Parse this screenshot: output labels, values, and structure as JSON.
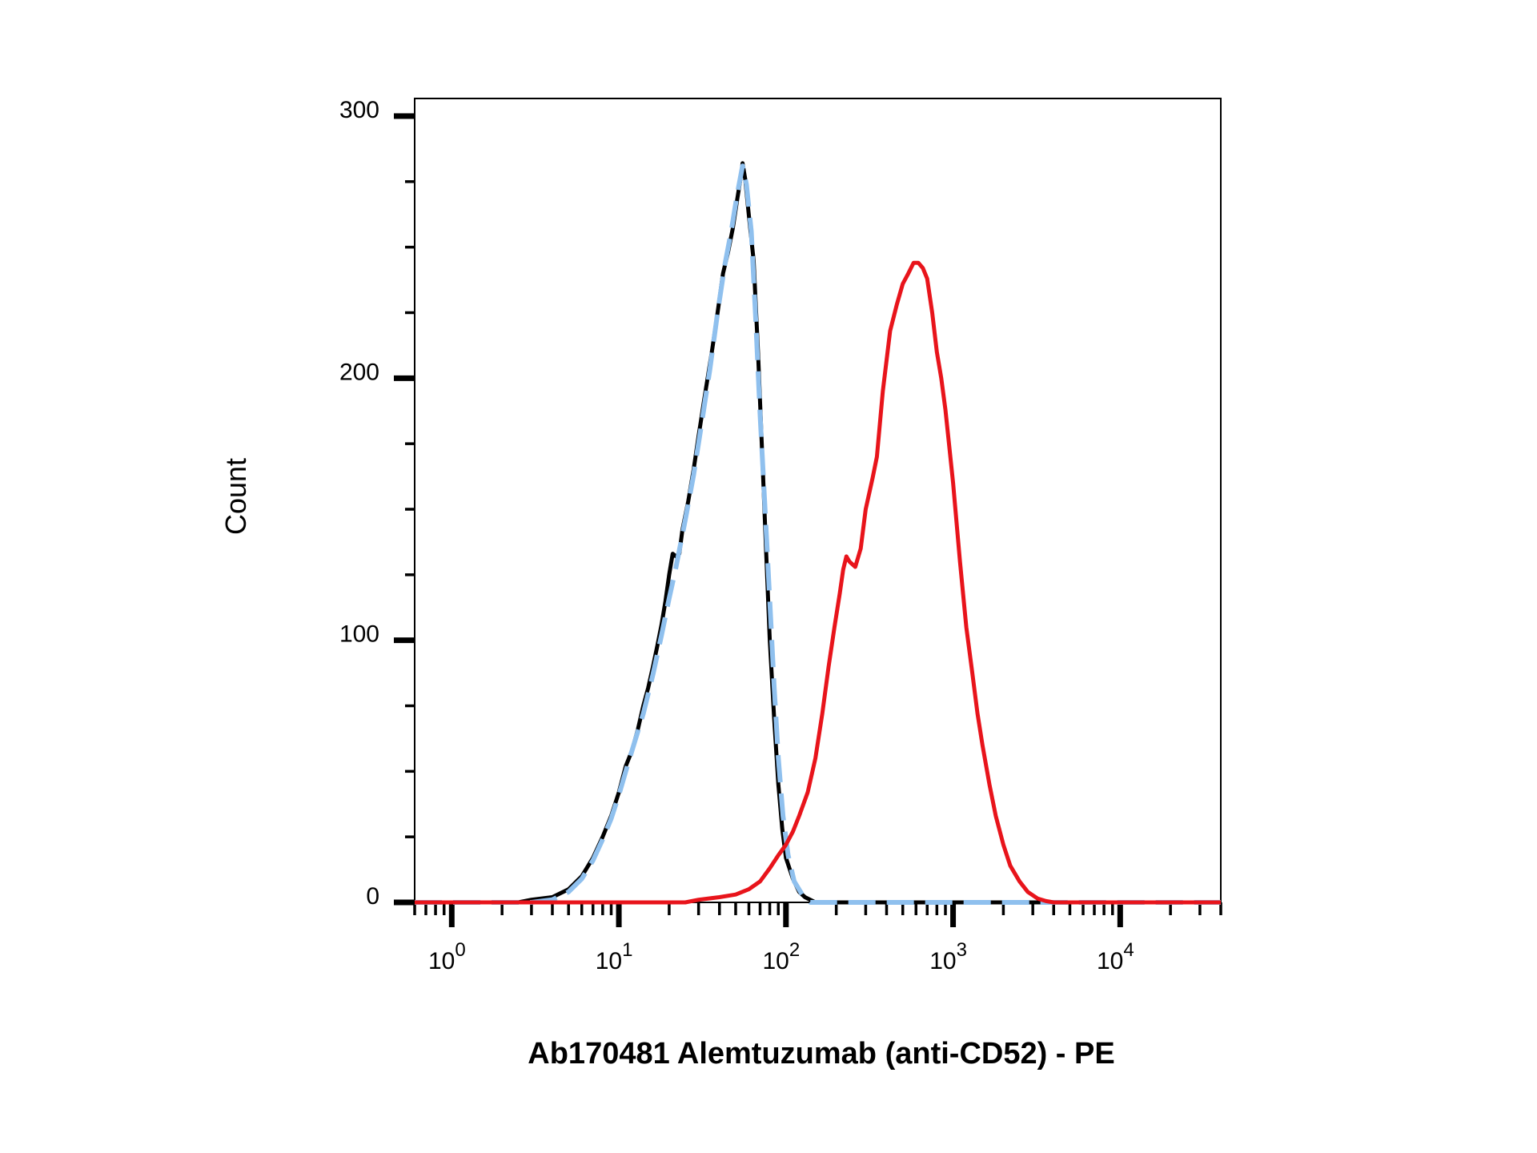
{
  "chart_data": {
    "type": "line",
    "title": "",
    "xlabel": "Ab170481 Alemtuzumab (anti-CD52) - PE",
    "ylabel": "Count",
    "x_scale": "log",
    "xlim": [
      0.6,
      40000
    ],
    "ylim": [
      0,
      305
    ],
    "x_ticks": [
      {
        "value": 1,
        "base": "10",
        "exp": "0"
      },
      {
        "value": 10,
        "base": "10",
        "exp": "1"
      },
      {
        "value": 100,
        "base": "10",
        "exp": "2"
      },
      {
        "value": 1000,
        "base": "10",
        "exp": "3"
      },
      {
        "value": 10000,
        "base": "10",
        "exp": "4"
      }
    ],
    "y_ticks": [
      {
        "value": 0,
        "label": "0"
      },
      {
        "value": 100,
        "label": "100"
      },
      {
        "value": 200,
        "label": "200"
      },
      {
        "value": 300,
        "label": "300"
      }
    ],
    "grid": false,
    "legend": false,
    "series": [
      {
        "color": "#000000",
        "style": "solid",
        "points": [
          [
            0.6,
            0
          ],
          [
            2.5,
            0
          ],
          [
            3,
            1
          ],
          [
            4,
            2
          ],
          [
            5,
            5
          ],
          [
            6,
            10
          ],
          [
            7,
            17
          ],
          [
            8,
            25
          ],
          [
            9,
            33
          ],
          [
            10,
            42
          ],
          [
            11,
            52
          ],
          [
            12,
            58
          ],
          [
            13,
            66
          ],
          [
            14,
            75
          ],
          [
            15,
            82
          ],
          [
            16,
            90
          ],
          [
            17,
            98
          ],
          [
            18,
            106
          ],
          [
            19,
            115
          ],
          [
            20,
            125
          ],
          [
            21,
            133
          ],
          [
            22,
            132
          ],
          [
            23,
            133
          ],
          [
            24,
            142
          ],
          [
            26,
            153
          ],
          [
            28,
            165
          ],
          [
            30,
            178
          ],
          [
            33,
            195
          ],
          [
            36,
            210
          ],
          [
            39,
            225
          ],
          [
            42,
            240
          ],
          [
            45,
            248
          ],
          [
            48,
            257
          ],
          [
            51,
            268
          ],
          [
            54,
            278
          ],
          [
            55,
            282
          ],
          [
            57,
            276
          ],
          [
            60,
            262
          ],
          [
            64,
            245
          ],
          [
            68,
            210
          ],
          [
            72,
            172
          ],
          [
            76,
            135
          ],
          [
            80,
            100
          ],
          [
            85,
            70
          ],
          [
            90,
            45
          ],
          [
            95,
            28
          ],
          [
            100,
            17
          ],
          [
            110,
            9
          ],
          [
            120,
            4
          ],
          [
            130,
            2
          ],
          [
            150,
            0
          ],
          [
            40000,
            0
          ]
        ]
      },
      {
        "color": "#8fc0ee",
        "style": "dashed",
        "points": [
          [
            0.6,
            0
          ],
          [
            3,
            0
          ],
          [
            4,
            1
          ],
          [
            5,
            4
          ],
          [
            6,
            9
          ],
          [
            7,
            16
          ],
          [
            8,
            24
          ],
          [
            9,
            32
          ],
          [
            10,
            41
          ],
          [
            11,
            50
          ],
          [
            12,
            58
          ],
          [
            14,
            72
          ],
          [
            16,
            87
          ],
          [
            18,
            102
          ],
          [
            20,
            116
          ],
          [
            22,
            128
          ],
          [
            25,
            146
          ],
          [
            28,
            163
          ],
          [
            31,
            181
          ],
          [
            35,
            203
          ],
          [
            39,
            225
          ],
          [
            43,
            243
          ],
          [
            47,
            256
          ],
          [
            51,
            270
          ],
          [
            55,
            281
          ],
          [
            58,
            274
          ],
          [
            62,
            256
          ],
          [
            66,
            222
          ],
          [
            70,
            186
          ],
          [
            75,
            150
          ],
          [
            80,
            115
          ],
          [
            85,
            82
          ],
          [
            90,
            55
          ],
          [
            96,
            33
          ],
          [
            103,
            18
          ],
          [
            112,
            8
          ],
          [
            125,
            3
          ],
          [
            140,
            0
          ],
          [
            40000,
            0
          ]
        ]
      },
      {
        "color": "#e8141b",
        "style": "solid",
        "points": [
          [
            0.6,
            0
          ],
          [
            25,
            0
          ],
          [
            30,
            1
          ],
          [
            40,
            2
          ],
          [
            50,
            3
          ],
          [
            60,
            5
          ],
          [
            70,
            8
          ],
          [
            80,
            13
          ],
          [
            90,
            18
          ],
          [
            100,
            22
          ],
          [
            110,
            27
          ],
          [
            120,
            33
          ],
          [
            135,
            42
          ],
          [
            150,
            55
          ],
          [
            165,
            72
          ],
          [
            180,
            90
          ],
          [
            195,
            105
          ],
          [
            210,
            118
          ],
          [
            220,
            127
          ],
          [
            230,
            132
          ],
          [
            240,
            130
          ],
          [
            260,
            128
          ],
          [
            280,
            135
          ],
          [
            300,
            150
          ],
          [
            330,
            162
          ],
          [
            350,
            170
          ],
          [
            380,
            195
          ],
          [
            420,
            218
          ],
          [
            460,
            228
          ],
          [
            500,
            236
          ],
          [
            540,
            240
          ],
          [
            580,
            244
          ],
          [
            620,
            244
          ],
          [
            660,
            242
          ],
          [
            700,
            238
          ],
          [
            750,
            225
          ],
          [
            800,
            210
          ],
          [
            850,
            200
          ],
          [
            900,
            188
          ],
          [
            1000,
            160
          ],
          [
            1100,
            130
          ],
          [
            1200,
            105
          ],
          [
            1300,
            88
          ],
          [
            1400,
            72
          ],
          [
            1500,
            60
          ],
          [
            1650,
            45
          ],
          [
            1800,
            33
          ],
          [
            2000,
            22
          ],
          [
            2200,
            14
          ],
          [
            2500,
            8
          ],
          [
            2800,
            4
          ],
          [
            3200,
            1.5
          ],
          [
            3600,
            0.5
          ],
          [
            4000,
            0
          ],
          [
            40000,
            0
          ]
        ]
      }
    ]
  }
}
